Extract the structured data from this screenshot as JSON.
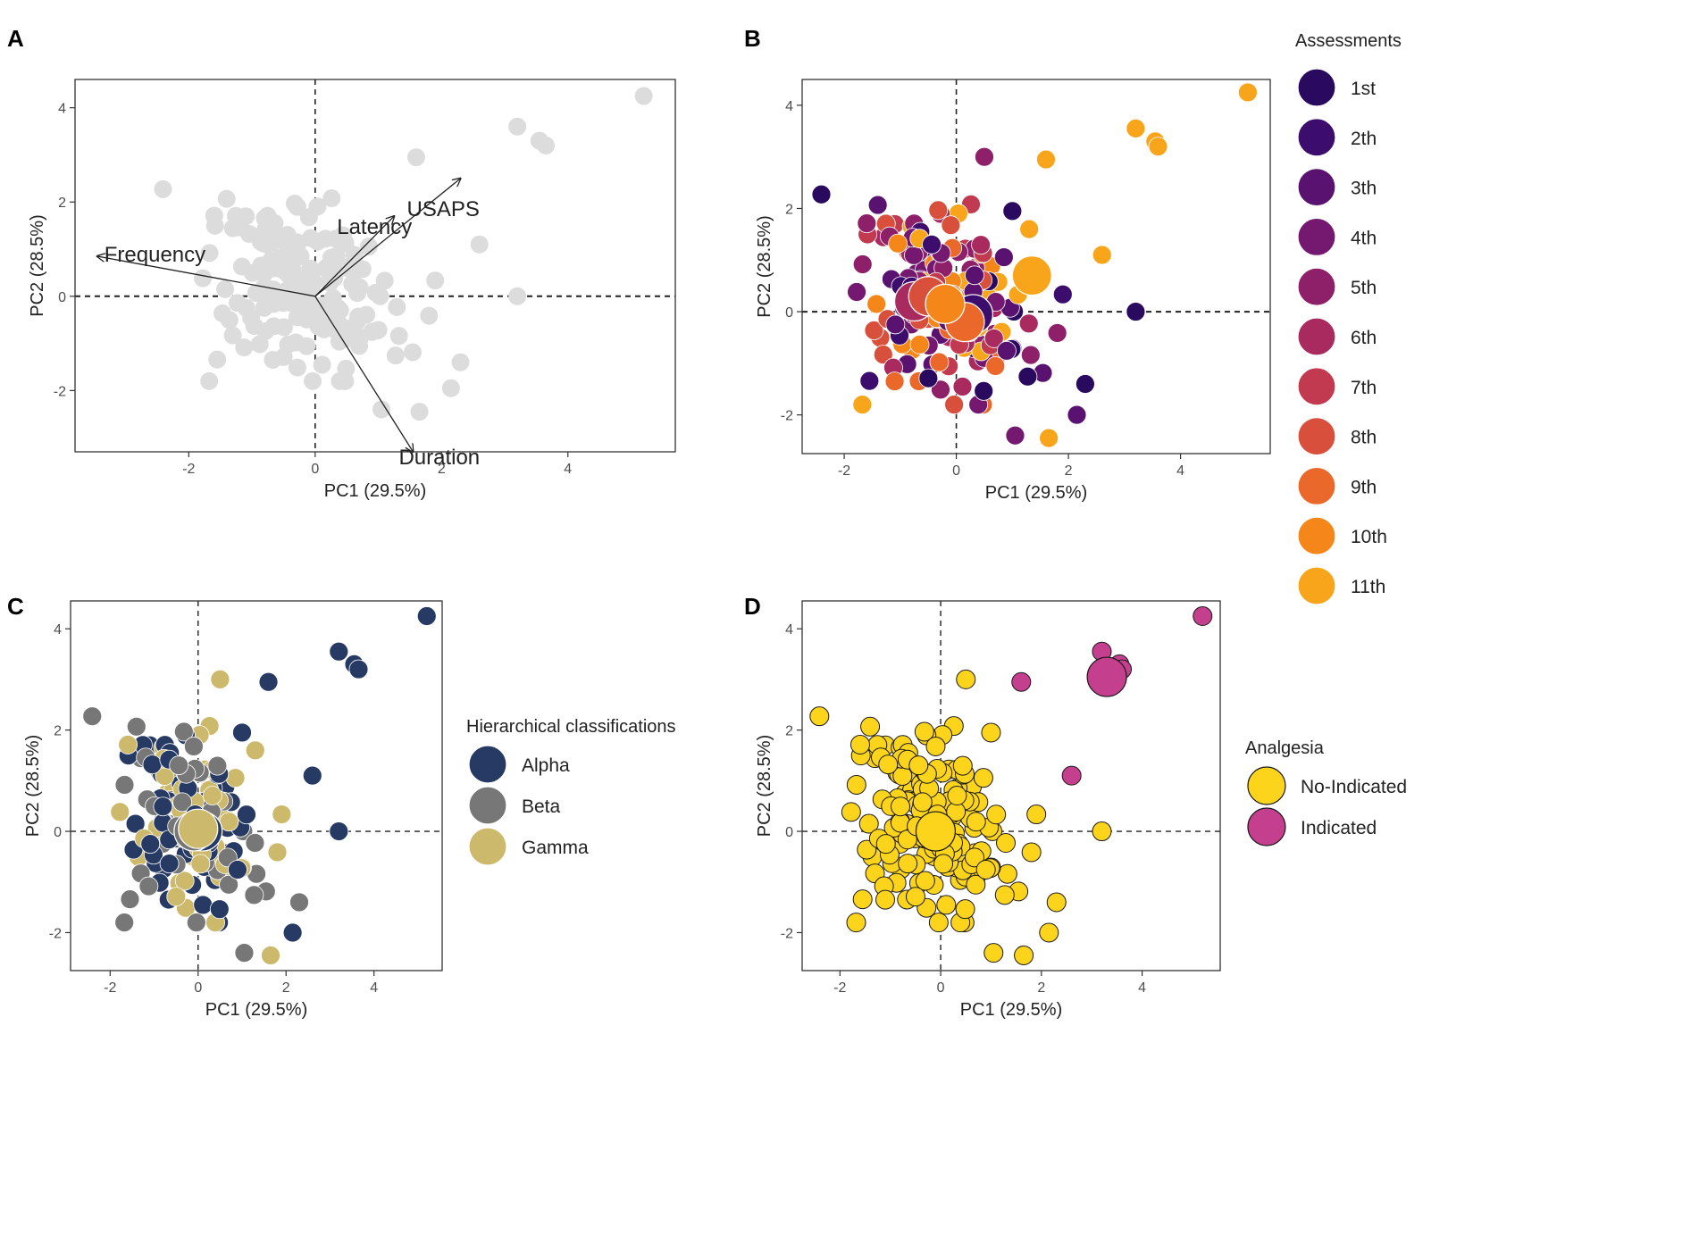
{
  "figure_panels": [
    "A",
    "B",
    "C",
    "D"
  ],
  "colors": {
    "grey_points": "#dcdcdc",
    "assessments": [
      "#2a0a5e",
      "#3d0d6e",
      "#5a1270",
      "#74196f",
      "#8e1f69",
      "#a82a5e",
      "#c23a4f",
      "#d84f3c",
      "#ea682a",
      "#f4861a",
      "#f9a51c"
    ],
    "hierarchical": {
      "Alpha": "#263a63",
      "Beta": "#777777",
      "Gamma": "#cdb96b"
    },
    "analgesia": {
      "No-Indicated": "#fcd41c",
      "Indicated": "#c43f8e"
    }
  },
  "chart_data": [
    {
      "panel": "A",
      "type": "scatter",
      "subtype": "biplot",
      "xlabel": "PC1 (29.5%)",
      "ylabel": "PC2 (28.5%)",
      "xlim": [
        -3.8,
        5.7
      ],
      "ylim": [
        -3.3,
        4.6
      ],
      "xticks": [
        -2,
        0,
        2,
        4
      ],
      "yticks": [
        -2,
        0,
        2,
        4
      ],
      "tick_labels_x": [
        "-2",
        "0",
        "2",
        "4"
      ],
      "tick_labels_y": [
        "-2",
        "0",
        "2",
        "4"
      ],
      "vectors": [
        {
          "name": "Frequency",
          "x": -3.45,
          "y": 0.85
        },
        {
          "name": "Latency",
          "x": 1.25,
          "y": 1.7
        },
        {
          "name": "USAPS",
          "x": 2.3,
          "y": 2.5
        },
        {
          "name": "Duration",
          "x": 1.55,
          "y": -3.3
        }
      ],
      "outliers": [
        {
          "x": 5.2,
          "y": 4.25
        },
        {
          "x": 3.2,
          "y": 3.6
        },
        {
          "x": 3.55,
          "y": 3.3
        },
        {
          "x": 3.65,
          "y": 3.2
        },
        {
          "x": 2.6,
          "y": 1.1
        },
        {
          "x": 1.6,
          "y": 2.95
        },
        {
          "x": 3.2,
          "y": 0.0
        },
        {
          "x": 2.15,
          "y": -1.95
        },
        {
          "x": 1.65,
          "y": -2.45
        },
        {
          "x": 1.05,
          "y": -2.4
        },
        {
          "x": 2.3,
          "y": -1.4
        }
      ]
    },
    {
      "panel": "B",
      "type": "scatter",
      "xlabel": "PC1 (29.5%)",
      "ylabel": "PC2 (28.5%)",
      "xlim": [
        -2.75,
        5.6
      ],
      "ylim": [
        -2.75,
        4.5
      ],
      "xticks": [
        -2,
        0,
        2,
        4
      ],
      "yticks": [
        -2,
        0,
        2,
        4
      ],
      "tick_labels_x": [
        "-2",
        "0",
        "2",
        "4"
      ],
      "tick_labels_y": [
        "-2",
        "0",
        "2",
        "4"
      ],
      "legend_title": "Assessments",
      "legend": [
        "1st",
        "2th",
        "3th",
        "4th",
        "5th",
        "6th",
        "7th",
        "8th",
        "9th",
        "10th",
        "11th"
      ],
      "outliers": [
        {
          "x": 5.2,
          "y": 4.25,
          "group": 10
        },
        {
          "x": 3.2,
          "y": 3.55,
          "group": 10
        },
        {
          "x": 3.55,
          "y": 3.3,
          "group": 10
        },
        {
          "x": 3.6,
          "y": 3.2,
          "group": 10
        },
        {
          "x": 1.6,
          "y": 2.95,
          "group": 10
        },
        {
          "x": 2.6,
          "y": 1.1,
          "group": 10
        },
        {
          "x": 1.3,
          "y": 1.6,
          "group": 10
        },
        {
          "x": 3.2,
          "y": 0.0,
          "group": 0
        },
        {
          "x": 1.0,
          "y": 1.95,
          "group": 0
        },
        {
          "x": 0.5,
          "y": 3.0,
          "group": 4
        },
        {
          "x": 2.3,
          "y": -1.4,
          "group": 0
        },
        {
          "x": 2.15,
          "y": -2.0,
          "group": 2
        },
        {
          "x": 1.05,
          "y": -2.4,
          "group": 3
        },
        {
          "x": 1.65,
          "y": -2.45,
          "group": 10
        },
        {
          "x": -1.1,
          "y": -1.35,
          "group": 8
        }
      ],
      "centroids": [
        {
          "x": -0.75,
          "y": 0.2,
          "group": 5
        },
        {
          "x": -0.5,
          "y": 0.3,
          "group": 7
        },
        {
          "x": 0.3,
          "y": -0.05,
          "group": 1
        },
        {
          "x": 0.15,
          "y": -0.2,
          "group": 8
        },
        {
          "x": -0.2,
          "y": 0.15,
          "group": 9
        },
        {
          "x": 1.35,
          "y": 0.7,
          "group": 10
        }
      ]
    },
    {
      "panel": "C",
      "type": "scatter",
      "xlabel": "PC1 (29.5%)",
      "ylabel": "PC2 (28.5%)",
      "xlim": [
        -2.9,
        5.55
      ],
      "ylim": [
        -2.75,
        4.55
      ],
      "xticks": [
        -2,
        0,
        2,
        4
      ],
      "yticks": [
        -2,
        0,
        2,
        4
      ],
      "tick_labels_x": [
        "-2",
        "0",
        "2",
        "4"
      ],
      "tick_labels_y": [
        "-2",
        "0",
        "2",
        "4"
      ],
      "legend_title": "Hierarchical classifications",
      "legend": [
        "Alpha",
        "Beta",
        "Gamma"
      ],
      "outliers": [
        {
          "x": 5.2,
          "y": 4.25,
          "group": 0
        },
        {
          "x": 3.2,
          "y": 3.55,
          "group": 0
        },
        {
          "x": 3.55,
          "y": 3.3,
          "group": 0
        },
        {
          "x": 3.65,
          "y": 3.2,
          "group": 0
        },
        {
          "x": 1.6,
          "y": 2.95,
          "group": 0
        },
        {
          "x": 2.6,
          "y": 1.1,
          "group": 0
        },
        {
          "x": 3.2,
          "y": 0.0,
          "group": 0
        },
        {
          "x": 0.5,
          "y": 3.0,
          "group": 2
        },
        {
          "x": 1.0,
          "y": 1.95,
          "group": 0
        },
        {
          "x": 2.3,
          "y": -1.4,
          "group": 1
        },
        {
          "x": 2.15,
          "y": -2.0,
          "group": 0
        },
        {
          "x": 1.05,
          "y": -2.4,
          "group": 1
        },
        {
          "x": 1.65,
          "y": -2.45,
          "group": 2
        },
        {
          "x": 1.3,
          "y": 1.6,
          "group": 2
        }
      ],
      "centroids": [
        {
          "x": 0.1,
          "y": 0.0,
          "group": 0
        },
        {
          "x": -0.1,
          "y": 0.0,
          "group": 1
        },
        {
          "x": 0.0,
          "y": 0.05,
          "group": 2
        }
      ]
    },
    {
      "panel": "D",
      "type": "scatter",
      "xlabel": "PC1 (29.5%)",
      "ylabel": "PC2 (28.5%)",
      "xlim": [
        -2.75,
        5.55
      ],
      "ylim": [
        -2.75,
        4.55
      ],
      "xticks": [
        -2,
        0,
        2,
        4
      ],
      "yticks": [
        -2,
        0,
        2,
        4
      ],
      "tick_labels_x": [
        "-2",
        "0",
        "2",
        "4"
      ],
      "tick_labels_y": [
        "-2",
        "0",
        "2",
        "4"
      ],
      "legend_title": "Analgesia",
      "legend": [
        "No-Indicated",
        "Indicated"
      ],
      "outliers": [
        {
          "x": 5.2,
          "y": 4.25,
          "group": 1
        },
        {
          "x": 3.2,
          "y": 3.55,
          "group": 1
        },
        {
          "x": 3.55,
          "y": 3.3,
          "group": 1
        },
        {
          "x": 3.6,
          "y": 3.2,
          "group": 1
        },
        {
          "x": 1.6,
          "y": 2.95,
          "group": 1
        },
        {
          "x": 2.6,
          "y": 1.1,
          "group": 1
        },
        {
          "x": 3.2,
          "y": 0.0,
          "group": 0
        },
        {
          "x": 0.5,
          "y": 3.0,
          "group": 0
        },
        {
          "x": 1.0,
          "y": 1.95,
          "group": 0
        },
        {
          "x": 2.3,
          "y": -1.4,
          "group": 0
        },
        {
          "x": 2.15,
          "y": -2.0,
          "group": 0
        },
        {
          "x": 1.05,
          "y": -2.4,
          "group": 0
        },
        {
          "x": 1.65,
          "y": -2.45,
          "group": 0
        },
        {
          "x": -1.1,
          "y": -1.35,
          "group": 0
        }
      ],
      "centroids": [
        {
          "x": -0.1,
          "y": 0.0,
          "group": 0
        },
        {
          "x": 3.3,
          "y": 3.05,
          "group": 1
        }
      ]
    }
  ]
}
